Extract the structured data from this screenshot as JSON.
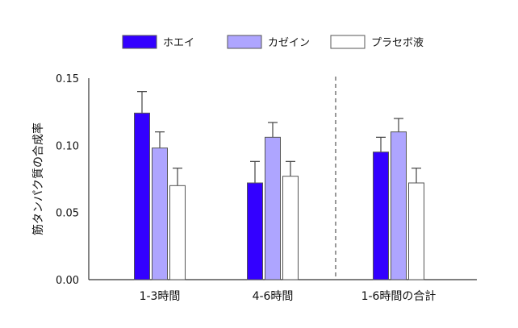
{
  "chart_data": {
    "type": "bar",
    "title": "",
    "xlabel": "",
    "ylabel": "筋タンパク質の合成率",
    "ylim": [
      0,
      0.15
    ],
    "yticks": [
      "0.00",
      "0.05",
      "0.10",
      "0.15"
    ],
    "grid": false,
    "legend_placement": "top",
    "categories": [
      "1-3時間",
      "4-6時間",
      "1-6時間の合計"
    ],
    "error_bars": "upper only",
    "separator": "dashed vertical line before the last category",
    "series": [
      {
        "name": "ホエイ",
        "color": "#3300ff",
        "values": [
          0.124,
          0.072,
          0.095
        ],
        "error_upper": [
          0.14,
          0.088,
          0.106
        ]
      },
      {
        "name": "カゼイン",
        "color": "#aea5ff",
        "values": [
          0.098,
          0.106,
          0.11
        ],
        "error_upper": [
          0.11,
          0.117,
          0.12
        ]
      },
      {
        "name": "プラセボ液",
        "color": "#ffffff",
        "values": [
          0.07,
          0.077,
          0.072
        ],
        "error_upper": [
          0.083,
          0.088,
          0.083
        ]
      }
    ]
  }
}
